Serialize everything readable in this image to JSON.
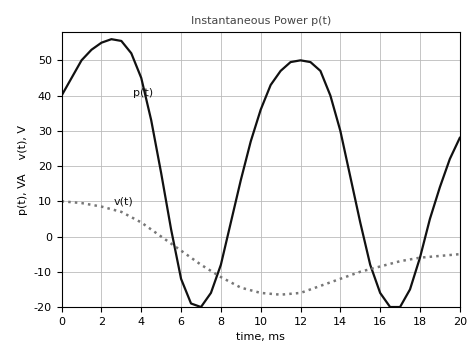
{
  "chart_data": {
    "type": "line",
    "title": "Instantaneous Power p(t)",
    "x_label": "time, ms",
    "y_label": "p(t), VA    v(t), V",
    "series": [
      {
        "name": "p(t)",
        "color": "#111111",
        "line_style": "solid",
        "x": [
          0,
          0.5,
          1,
          1.5,
          2,
          2.5,
          3,
          3.5,
          4,
          4.5,
          5,
          5.5,
          6,
          6.5,
          7,
          7.5,
          8,
          8.5,
          9,
          9.5,
          10,
          10.5,
          11,
          11.5,
          12,
          12.5,
          13,
          13.5,
          14,
          14.5,
          15,
          15.5,
          16,
          16.5,
          17,
          17.5,
          18,
          18.5,
          19,
          19.5,
          20
        ],
        "values": [
          40,
          45,
          50,
          53,
          55,
          56,
          55.5,
          52,
          45,
          33,
          18,
          2,
          -12,
          -19,
          -20,
          -16,
          -8,
          4,
          16,
          27,
          36,
          43,
          47,
          49.5,
          50,
          49.5,
          47,
          40,
          30,
          17,
          4,
          -8,
          -16,
          -20,
          -20,
          -15,
          -6,
          5,
          14,
          22,
          28
        ]
      },
      {
        "name": "v(t)",
        "color": "#777777",
        "line_style": "dotted",
        "x": [
          0,
          1,
          2,
          3,
          4,
          5,
          6,
          7,
          8,
          9,
          10,
          11,
          12,
          13,
          14,
          15,
          16,
          17,
          18,
          19,
          20
        ],
        "values": [
          10,
          9.5,
          8.5,
          7,
          4,
          0,
          -4,
          -8,
          -11.5,
          -14.5,
          -16,
          -16.5,
          -16,
          -14,
          -12,
          -10,
          -8.5,
          -7,
          -6,
          -5.5,
          -5
        ]
      }
    ],
    "annotations": [
      {
        "text": "p(t)",
        "x": 3.6,
        "y": 40
      },
      {
        "text": "v(t)",
        "x": 2.6,
        "y": 9
      }
    ],
    "xlim": [
      0,
      20
    ],
    "xticks": [
      0,
      2,
      4,
      6,
      8,
      10,
      12,
      14,
      16,
      18,
      20
    ],
    "ylim": [
      -20,
      58
    ],
    "yticks": [
      -20,
      -10,
      0,
      10,
      20,
      30,
      40,
      50
    ],
    "grid": true
  }
}
